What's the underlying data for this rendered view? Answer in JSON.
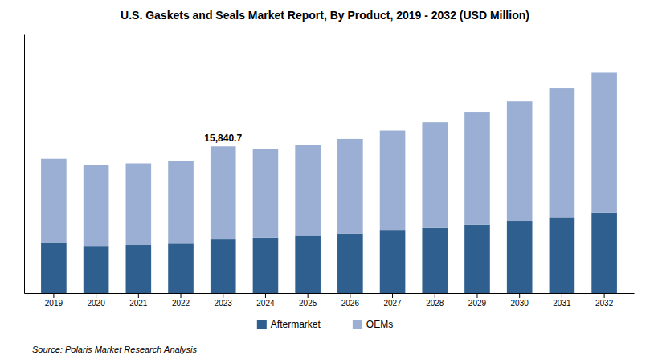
{
  "chart_data": {
    "type": "bar",
    "stacked": true,
    "title": "U.S. Gaskets and Seals Market Report, By Product, 2019 - 2032 (USD Million)",
    "categories": [
      "2019",
      "2020",
      "2021",
      "2022",
      "2023",
      "2024",
      "2025",
      "2026",
      "2027",
      "2028",
      "2029",
      "2030",
      "2031",
      "2032"
    ],
    "series": [
      {
        "name": "Aftermarket",
        "color": "#2E5F8E",
        "values": [
          5500,
          5100,
          5200,
          5350,
          5800,
          6000,
          6200,
          6450,
          6750,
          7050,
          7400,
          7800,
          8200,
          8700
        ]
      },
      {
        "name": "OEMs",
        "color": "#9BAFD4",
        "values": [
          9000,
          8700,
          8800,
          8950,
          10041,
          9600,
          9800,
          10200,
          10800,
          11400,
          12100,
          12900,
          13900,
          15100
        ]
      }
    ],
    "ylim": [
      0,
      28000
    ],
    "tick_labels": "x",
    "grid": false,
    "legend": "bottom",
    "annotations": [
      {
        "text": "15,840.7",
        "category": "2023"
      },
      {
        "text": "Source: Polaris  Market Research Analysis"
      }
    ]
  }
}
